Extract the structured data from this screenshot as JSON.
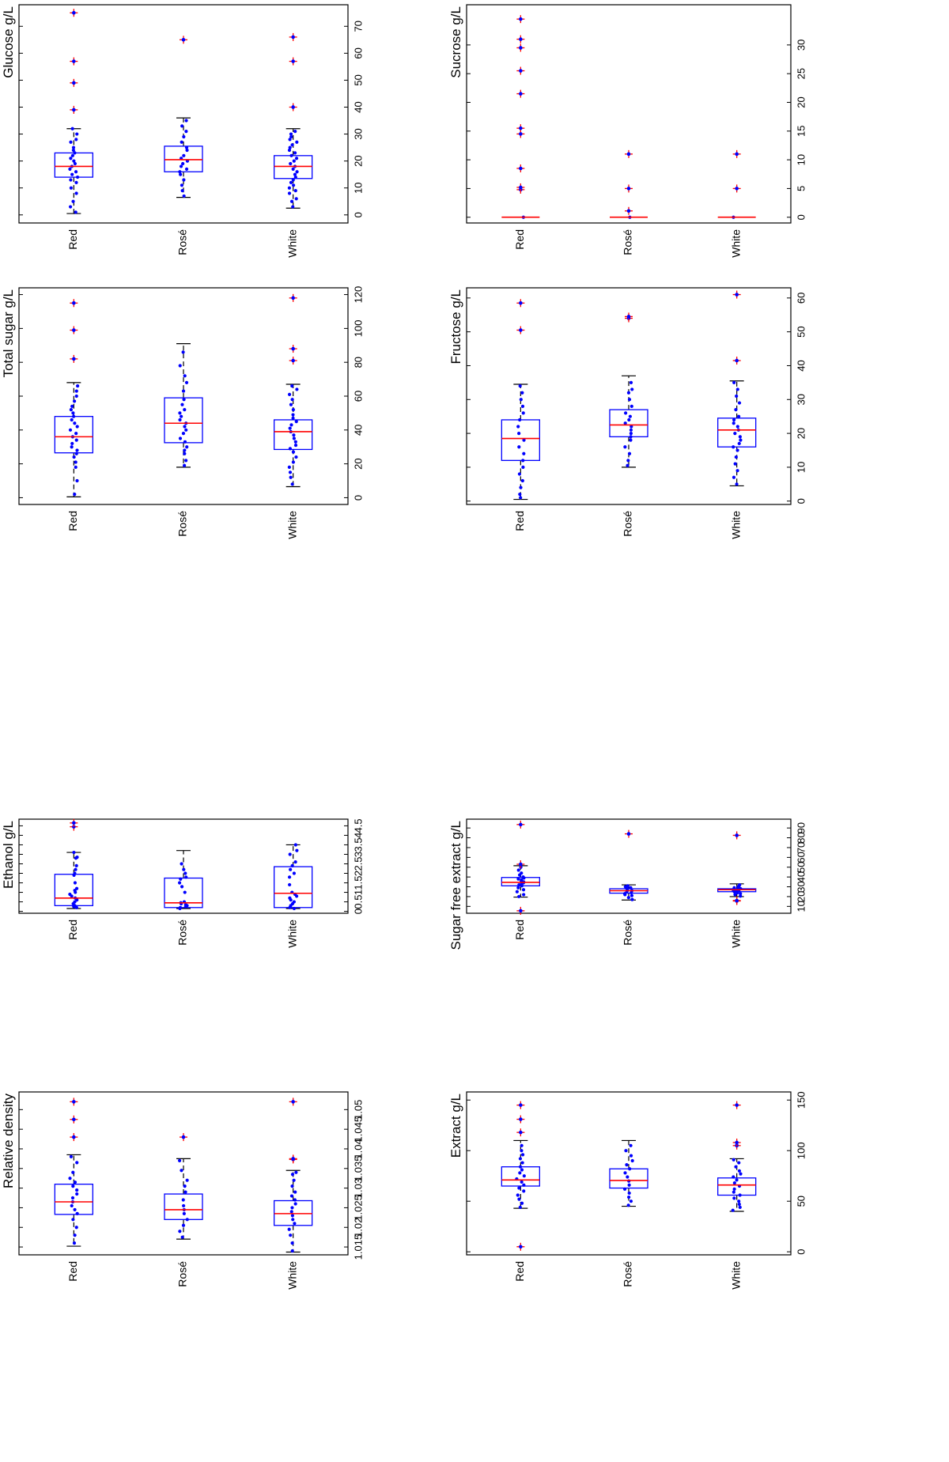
{
  "chart_data": [
    {
      "type": "box",
      "title": "Glucose g/L",
      "categories": [
        "Red",
        "Rosé",
        "White"
      ],
      "ylim": [
        -3,
        78
      ],
      "yticks": [
        0,
        10,
        20,
        30,
        40,
        50,
        60,
        70
      ],
      "boxes": [
        {
          "category": "Red",
          "q1": 14,
          "median": 18,
          "q3": 23,
          "whisker_low": 0.5,
          "whisker_high": 32,
          "outliers": [
            39,
            49,
            57,
            75
          ],
          "points": [
            1,
            3,
            5,
            8,
            10,
            12,
            13,
            14,
            15,
            16,
            17,
            18,
            19,
            20,
            21,
            22,
            23,
            24,
            25,
            27,
            28,
            30,
            32
          ]
        },
        {
          "category": "Rosé",
          "q1": 16,
          "median": 20.5,
          "q3": 25.5,
          "whisker_low": 6.5,
          "whisker_high": 36,
          "outliers": [
            65
          ],
          "points": [
            7,
            9,
            11,
            13,
            15,
            16,
            17,
            18,
            19,
            20,
            21,
            22,
            24,
            25,
            27,
            29,
            31,
            33,
            35
          ]
        },
        {
          "category": "White",
          "q1": 13.5,
          "median": 18,
          "q3": 22,
          "whisker_low": 2.5,
          "whisker_high": 32,
          "outliers": [
            40,
            57,
            66
          ],
          "points": [
            3,
            5,
            6,
            8,
            9,
            10,
            11,
            12,
            13,
            14,
            15,
            16,
            17,
            18,
            19,
            20,
            21,
            22,
            23,
            24,
            25,
            26,
            27,
            28,
            29,
            30,
            31
          ]
        }
      ]
    },
    {
      "type": "box",
      "title": "Total sugar g/L",
      "categories": [
        "Red",
        "Rosé",
        "White"
      ],
      "ylim": [
        -4,
        124
      ],
      "yticks": [
        0,
        20,
        40,
        60,
        80,
        100,
        120
      ],
      "boxes": [
        {
          "category": "Red",
          "q1": 26.5,
          "median": 36,
          "q3": 48,
          "whisker_low": 0.5,
          "whisker_high": 68,
          "outliers": [
            82,
            99,
            115
          ],
          "points": [
            2,
            10,
            18,
            21,
            24,
            26,
            28,
            30,
            32,
            34,
            36,
            38,
            40,
            42,
            44,
            46,
            48,
            50,
            52,
            54,
            57,
            60,
            63,
            66
          ]
        },
        {
          "category": "Rosé",
          "q1": 32.5,
          "median": 44,
          "q3": 59,
          "whisker_low": 18,
          "whisker_high": 91,
          "outliers": [],
          "points": [
            19,
            22,
            26,
            28,
            30,
            33,
            35,
            38,
            40,
            42,
            44,
            46,
            48,
            50,
            52,
            55,
            58,
            63,
            68,
            72,
            78,
            86
          ]
        },
        {
          "category": "White",
          "q1": 28.5,
          "median": 39,
          "q3": 46,
          "whisker_low": 6.5,
          "whisker_high": 67,
          "outliers": [
            81,
            88,
            118
          ],
          "points": [
            8,
            12,
            15,
            18,
            21,
            24,
            27,
            29,
            31,
            33,
            35,
            37,
            39,
            41,
            43,
            45,
            47,
            49,
            52,
            55,
            58,
            61,
            64,
            66
          ]
        }
      ]
    },
    {
      "type": "box",
      "title": "Ethanol g/L",
      "categories": [
        "Red",
        "Rosé",
        "White"
      ],
      "ylim": [
        -0.1,
        4.85
      ],
      "yticks": [
        0,
        0.5,
        1,
        1.5,
        2,
        2.5,
        3,
        3.5,
        4,
        4.5
      ],
      "boxes": [
        {
          "category": "Red",
          "q1": 0.3,
          "median": 0.7,
          "q3": 1.95,
          "whisker_low": 0.15,
          "whisker_high": 3.1,
          "outliers": [
            4.45,
            4.65
          ],
          "points": [
            0.2,
            0.25,
            0.3,
            0.4,
            0.5,
            0.6,
            0.7,
            0.8,
            0.9,
            1.0,
            1.1,
            1.2,
            1.5,
            1.9,
            2.0,
            2.2,
            2.4,
            2.8,
            2.85,
            3.1
          ]
        },
        {
          "category": "Rosé",
          "q1": 0.2,
          "median": 0.45,
          "q3": 1.75,
          "whisker_low": 0.15,
          "whisker_high": 3.2,
          "outliers": [],
          "points": [
            0.15,
            0.2,
            0.25,
            0.3,
            0.35,
            0.4,
            0.45,
            0.5,
            1.0,
            1.3,
            1.5,
            1.7,
            1.8,
            2.0,
            2.2,
            2.5
          ]
        },
        {
          "category": "White",
          "q1": 0.2,
          "median": 0.95,
          "q3": 2.35,
          "whisker_low": 0.15,
          "whisker_high": 3.5,
          "outliers": [],
          "points": [
            0.15,
            0.2,
            0.3,
            0.4,
            0.5,
            0.6,
            0.7,
            0.8,
            0.9,
            1.0,
            1.4,
            1.8,
            2.0,
            2.2,
            2.4,
            2.6,
            3.0,
            3.2,
            3.5
          ]
        }
      ]
    },
    {
      "type": "box",
      "title": "Relative density",
      "categories": [
        "Red",
        "Rosé",
        "White"
      ],
      "ylim": [
        1.013,
        1.0545
      ],
      "yticks": [
        1.015,
        1.02,
        1.025,
        1.03,
        1.035,
        1.04,
        1.045,
        1.05
      ],
      "boxes": [
        {
          "category": "Red",
          "q1": 1.0233,
          "median": 1.0265,
          "q3": 1.031,
          "whisker_low": 1.0152,
          "whisker_high": 1.0385,
          "outliers": [
            1.043,
            1.0475,
            1.052
          ],
          "points": [
            1.016,
            1.018,
            1.02,
            1.022,
            1.0235,
            1.0245,
            1.0255,
            1.0265,
            1.0275,
            1.0285,
            1.0295,
            1.0305,
            1.0315,
            1.0325,
            1.034,
            1.0365,
            1.038
          ]
        },
        {
          "category": "Rosé",
          "q1": 1.022,
          "median": 1.0245,
          "q3": 1.0285,
          "whisker_low": 1.017,
          "whisker_high": 1.0375,
          "outliers": [
            1.043
          ],
          "points": [
            1.0175,
            1.019,
            1.0205,
            1.022,
            1.0235,
            1.0245,
            1.0255,
            1.027,
            1.029,
            1.0305,
            1.032,
            1.0345,
            1.037
          ]
        },
        {
          "category": "White",
          "q1": 1.0205,
          "median": 1.0235,
          "q3": 1.0268,
          "whisker_low": 1.0137,
          "whisker_high": 1.0345,
          "outliers": [
            1.0373,
            1.0375,
            1.052
          ],
          "points": [
            1.014,
            1.016,
            1.018,
            1.0195,
            1.021,
            1.022,
            1.023,
            1.024,
            1.025,
            1.026,
            1.027,
            1.028,
            1.029,
            1.0305,
            1.032,
            1.0335,
            1.034
          ]
        }
      ]
    },
    {
      "type": "box",
      "title": "Sucrose g/L",
      "categories": [
        "Red",
        "Rosé",
        "White"
      ],
      "ylim": [
        -1,
        37
      ],
      "yticks": [
        0,
        5,
        10,
        15,
        20,
        25,
        30
      ],
      "boxes": [
        {
          "category": "Red",
          "q1": 0,
          "median": 0,
          "q3": 0,
          "whisker_low": 0,
          "whisker_high": 0,
          "outliers": [
            4.8,
            5.2,
            8.5,
            14.5,
            15.5,
            21.5,
            25.5,
            29.5,
            31,
            34.5
          ],
          "points": [
            0
          ]
        },
        {
          "category": "Rosé",
          "q1": 0,
          "median": 0,
          "q3": 0,
          "whisker_low": 0,
          "whisker_high": 0,
          "outliers": [
            1.1,
            5,
            11
          ],
          "points": [
            0
          ]
        },
        {
          "category": "White",
          "q1": 0,
          "median": 0,
          "q3": 0,
          "whisker_low": 0,
          "whisker_high": 0,
          "outliers": [
            5,
            11
          ],
          "points": [
            0
          ]
        }
      ]
    },
    {
      "type": "box",
      "title": "Fructose g/L",
      "categories": [
        "Red",
        "Rosé",
        "White"
      ],
      "ylim": [
        -1,
        63
      ],
      "yticks": [
        0,
        10,
        20,
        30,
        40,
        50,
        60
      ],
      "boxes": [
        {
          "category": "Red",
          "q1": 12,
          "median": 18.5,
          "q3": 24,
          "whisker_low": 0.5,
          "whisker_high": 34.5,
          "outliers": [
            50.5,
            58.5
          ],
          "points": [
            1,
            2,
            4,
            6,
            8,
            10,
            12,
            14,
            16,
            18,
            20,
            22,
            24,
            26,
            28,
            30,
            32,
            34
          ]
        },
        {
          "category": "Rosé",
          "q1": 19,
          "median": 22.5,
          "q3": 27,
          "whisker_low": 10,
          "whisker_high": 37,
          "outliers": [
            54,
            54.5
          ],
          "points": [
            10.5,
            12,
            14,
            16,
            18,
            19,
            20,
            21,
            22,
            23,
            24,
            25,
            26,
            28,
            30,
            32,
            33,
            35
          ]
        },
        {
          "category": "White",
          "q1": 16,
          "median": 21,
          "q3": 24.5,
          "whisker_low": 4.5,
          "whisker_high": 35.5,
          "outliers": [
            41.5,
            61
          ],
          "points": [
            5,
            7,
            9,
            11,
            13,
            15,
            16,
            17,
            18,
            19,
            20,
            21,
            22,
            23,
            24,
            25,
            27,
            29,
            31,
            33,
            35
          ]
        }
      ]
    },
    {
      "type": "box",
      "title": "Sugar free extract g/L",
      "categories": [
        "Red",
        "Rosé",
        "White"
      ],
      "ylim": [
        3,
        99
      ],
      "yticks": [
        10,
        20,
        30,
        40,
        50,
        60,
        70,
        80,
        90
      ],
      "boxes": [
        {
          "category": "Red",
          "q1": 31,
          "median": 34.5,
          "q3": 39.5,
          "whisker_low": 19.5,
          "whisker_high": 51.5,
          "outliers": [
            5.5,
            53,
            93.5
          ],
          "points": [
            20,
            22,
            25,
            27,
            29,
            31,
            32,
            33,
            34,
            35,
            36,
            37,
            38,
            39,
            40,
            42,
            44,
            47,
            50
          ]
        },
        {
          "category": "Rosé",
          "q1": 23.5,
          "median": 26,
          "q3": 28,
          "whisker_low": 16.5,
          "whisker_high": 32,
          "outliers": [
            84
          ],
          "points": [
            17,
            19,
            21,
            22,
            23,
            24,
            25,
            26,
            27,
            28,
            29,
            30,
            31
          ]
        },
        {
          "category": "White",
          "q1": 25,
          "median": 27,
          "q3": 28,
          "whisker_low": 20,
          "whisker_high": 33,
          "outliers": [
            15.5,
            16,
            82.5
          ],
          "points": [
            20.5,
            22,
            23,
            24,
            25,
            25.5,
            26,
            26.5,
            27,
            27.5,
            28,
            29,
            30,
            31,
            32
          ]
        }
      ]
    },
    {
      "type": "box",
      "title": "Extract g/L",
      "categories": [
        "Red",
        "Rosé",
        "White"
      ],
      "ylim": [
        -3,
        158
      ],
      "yticks": [
        0,
        50,
        100,
        150
      ],
      "boxes": [
        {
          "category": "Red",
          "q1": 65,
          "median": 71,
          "q3": 84,
          "whisker_low": 43,
          "whisker_high": 110,
          "outliers": [
            5,
            118,
            131,
            145
          ],
          "points": [
            44,
            48,
            52,
            56,
            60,
            63,
            66,
            69,
            72,
            75,
            78,
            81,
            84,
            88,
            92,
            96,
            100,
            105
          ]
        },
        {
          "category": "Rosé",
          "q1": 63,
          "median": 70.5,
          "q3": 82,
          "whisker_low": 45,
          "whisker_high": 110,
          "outliers": [],
          "points": [
            46,
            50,
            54,
            58,
            62,
            66,
            70,
            74,
            78,
            82,
            86,
            90,
            95,
            100,
            105
          ]
        },
        {
          "category": "White",
          "q1": 56,
          "median": 66,
          "q3": 73,
          "whisker_low": 40,
          "whisker_high": 92,
          "outliers": [
            105,
            108,
            145
          ],
          "points": [
            41,
            44,
            47,
            50,
            53,
            56,
            59,
            62,
            65,
            68,
            71,
            74,
            77,
            80,
            84,
            88,
            91
          ]
        }
      ]
    }
  ]
}
